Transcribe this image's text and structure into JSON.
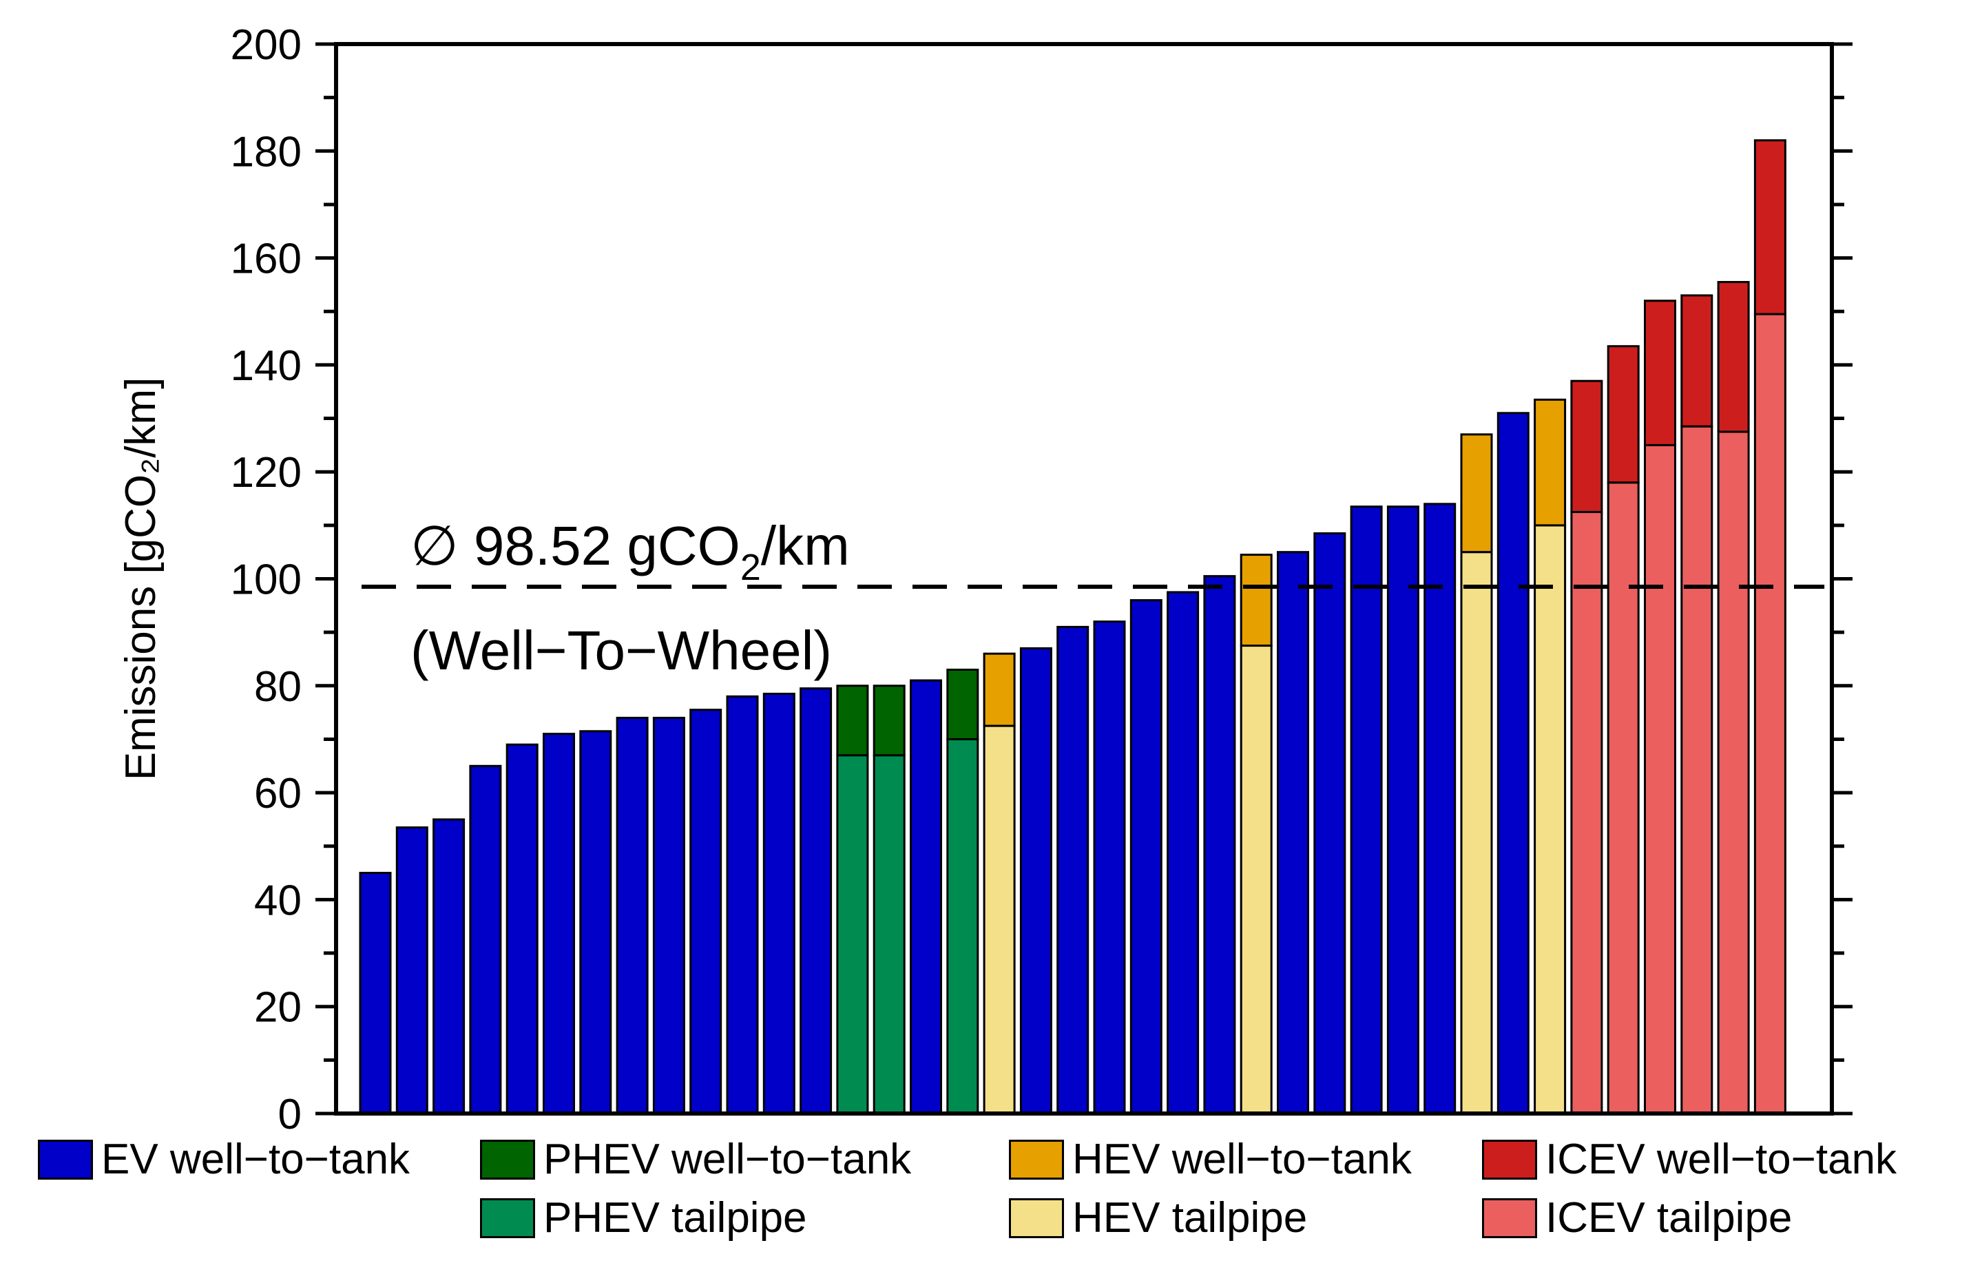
{
  "chart_data": {
    "type": "bar",
    "stacked": true,
    "ylabel": "Emissions [gCO₂/km]",
    "ylim": [
      0,
      200
    ],
    "yticks": [
      0,
      20,
      40,
      60,
      80,
      100,
      120,
      140,
      160,
      180,
      200
    ],
    "annotation": {
      "line1_prefix": "∅ 98.52 gCO",
      "line1_sub": "2",
      "line1_suffix": "/km",
      "line2": "(Well−To−Wheel)",
      "value": 98.52
    },
    "colors": {
      "EV": "#0000c8",
      "PHEV_wtt": "#006400",
      "PHEV_tailpipe": "#008c50",
      "HEV_wtt": "#e6a000",
      "HEV_tailpipe": "#f5e08a",
      "ICEV_wtt": "#cd1e1e",
      "ICEV_tailpipe": "#eb5f5f"
    },
    "bars": [
      {
        "type": "EV",
        "tailpipe": 0,
        "total": 45
      },
      {
        "type": "EV",
        "tailpipe": 0,
        "total": 53.5
      },
      {
        "type": "EV",
        "tailpipe": 0,
        "total": 55
      },
      {
        "type": "EV",
        "tailpipe": 0,
        "total": 65
      },
      {
        "type": "EV",
        "tailpipe": 0,
        "total": 69
      },
      {
        "type": "EV",
        "tailpipe": 0,
        "total": 71
      },
      {
        "type": "EV",
        "tailpipe": 0,
        "total": 71.5
      },
      {
        "type": "EV",
        "tailpipe": 0,
        "total": 74
      },
      {
        "type": "EV",
        "tailpipe": 0,
        "total": 74
      },
      {
        "type": "EV",
        "tailpipe": 0,
        "total": 75.5
      },
      {
        "type": "EV",
        "tailpipe": 0,
        "total": 78
      },
      {
        "type": "EV",
        "tailpipe": 0,
        "total": 78.5
      },
      {
        "type": "EV",
        "tailpipe": 0,
        "total": 79.5
      },
      {
        "type": "PHEV",
        "tailpipe": 67,
        "total": 80
      },
      {
        "type": "PHEV",
        "tailpipe": 67,
        "total": 80
      },
      {
        "type": "EV",
        "tailpipe": 0,
        "total": 81
      },
      {
        "type": "PHEV",
        "tailpipe": 70,
        "total": 83
      },
      {
        "type": "HEV",
        "tailpipe": 72.5,
        "total": 86
      },
      {
        "type": "EV",
        "tailpipe": 0,
        "total": 87
      },
      {
        "type": "EV",
        "tailpipe": 0,
        "total": 91
      },
      {
        "type": "EV",
        "tailpipe": 0,
        "total": 92
      },
      {
        "type": "EV",
        "tailpipe": 0,
        "total": 96
      },
      {
        "type": "EV",
        "tailpipe": 0,
        "total": 97.5
      },
      {
        "type": "EV",
        "tailpipe": 0,
        "total": 100.5
      },
      {
        "type": "HEV",
        "tailpipe": 87.5,
        "total": 104.5
      },
      {
        "type": "EV",
        "tailpipe": 0,
        "total": 105
      },
      {
        "type": "EV",
        "tailpipe": 0,
        "total": 108.5
      },
      {
        "type": "EV",
        "tailpipe": 0,
        "total": 113.5
      },
      {
        "type": "EV",
        "tailpipe": 0,
        "total": 113.5
      },
      {
        "type": "EV",
        "tailpipe": 0,
        "total": 114
      },
      {
        "type": "HEV",
        "tailpipe": 105,
        "total": 127
      },
      {
        "type": "EV",
        "tailpipe": 0,
        "total": 131
      },
      {
        "type": "HEV",
        "tailpipe": 110,
        "total": 133.5
      },
      {
        "type": "ICEV",
        "tailpipe": 112.5,
        "total": 137
      },
      {
        "type": "ICEV",
        "tailpipe": 118,
        "total": 143.5
      },
      {
        "type": "ICEV",
        "tailpipe": 125,
        "total": 152
      },
      {
        "type": "ICEV",
        "tailpipe": 128.5,
        "total": 153
      },
      {
        "type": "ICEV",
        "tailpipe": 127.5,
        "total": 155.5
      },
      {
        "type": "ICEV",
        "tailpipe": 149.5,
        "total": 182
      }
    ],
    "legend": [
      {
        "label": "EV well−to−tank",
        "color": "#0000c8"
      },
      {
        "label": "PHEV well−to−tank",
        "color": "#006400"
      },
      {
        "label": "HEV well−to−tank",
        "color": "#e6a000"
      },
      {
        "label": "ICEV well−to−tank",
        "color": "#cd1e1e"
      },
      {
        "label": "PHEV tailpipe",
        "color": "#008c50"
      },
      {
        "label": "HEV tailpipe",
        "color": "#f5e08a"
      },
      {
        "label": "ICEV tailpipe",
        "color": "#eb5f5f"
      }
    ]
  }
}
